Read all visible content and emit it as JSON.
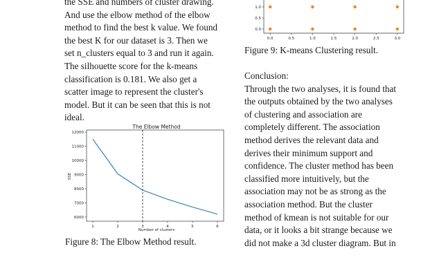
{
  "left_column": {
    "lines": [
      "the SSE and numbers of cluster drawing.",
      "And use the elbow method of the elbow",
      "method to find the best k value. We found",
      "the best K for our dataset is 3. Then we",
      "set n_clusters equal to 3 and run it again.",
      "The silhouette score for the k-means",
      "classification is 0.181. We also get a",
      "scatter image to represent the cluster's",
      "model. But it can be seen that this is not",
      "ideal."
    ]
  },
  "figure8": {
    "caption": "Figure 8: The Elbow Method result.",
    "chart_data": {
      "type": "line",
      "title": "The Elbow Method",
      "xlabel": "Number of clusters",
      "ylabel": "SSE",
      "x": [
        1,
        2,
        3,
        4,
        5,
        6
      ],
      "series": [
        {
          "values": [
            11500,
            9050,
            7900,
            7250,
            6700,
            6200
          ]
        }
      ],
      "xticks": [
        "1",
        "2",
        "3",
        "4",
        "5",
        "6"
      ],
      "yticks": [
        "6000",
        "7000",
        "8000",
        "9000",
        "10000",
        "11000",
        "12000"
      ],
      "xlim": [
        0.75,
        6.25
      ],
      "ylim": [
        5700,
        12150
      ],
      "vline_x": 3,
      "line_color": "#1f77b4",
      "grid": false
    }
  },
  "figure9": {
    "caption": "Figure 9: K-means Clustering result.",
    "chart_data": {
      "type": "scatter",
      "xticks": [
        "0.0",
        "0.5",
        "1.0",
        "1.5",
        "2.0",
        "2.5",
        "3.0"
      ],
      "yticks": [
        "0.0",
        "0.5",
        "1.0"
      ],
      "xlim": [
        -0.15,
        3.15
      ],
      "ylim": [
        -0.05,
        1.05
      ],
      "points": [
        {
          "x": 0,
          "y": 0
        },
        {
          "x": 1,
          "y": 0
        },
        {
          "x": 2,
          "y": 0
        },
        {
          "x": 3,
          "y": 0
        },
        {
          "x": 0,
          "y": 1
        },
        {
          "x": 1,
          "y": 1
        },
        {
          "x": 2,
          "y": 1
        },
        {
          "x": 3,
          "y": 1
        }
      ],
      "point_color": "#ff7f0e"
    }
  },
  "right_column": {
    "heading": "Conclusion:",
    "lines": [
      "Through the two analyses, it is found that",
      "the outputs obtained by the two analyses",
      "of clustering and association are",
      "completely different. The association",
      "method derives the relevant data and",
      "derives their minimum support and",
      "confidence. The cluster method has been",
      "classified more intuitively, but the",
      "association may not be as strong as the",
      "association method. But the cluster",
      "method of kmean is not suitable for our",
      "data, or it looks a bit strange because we",
      "did not make a 3d cluster diagram. But in"
    ]
  }
}
